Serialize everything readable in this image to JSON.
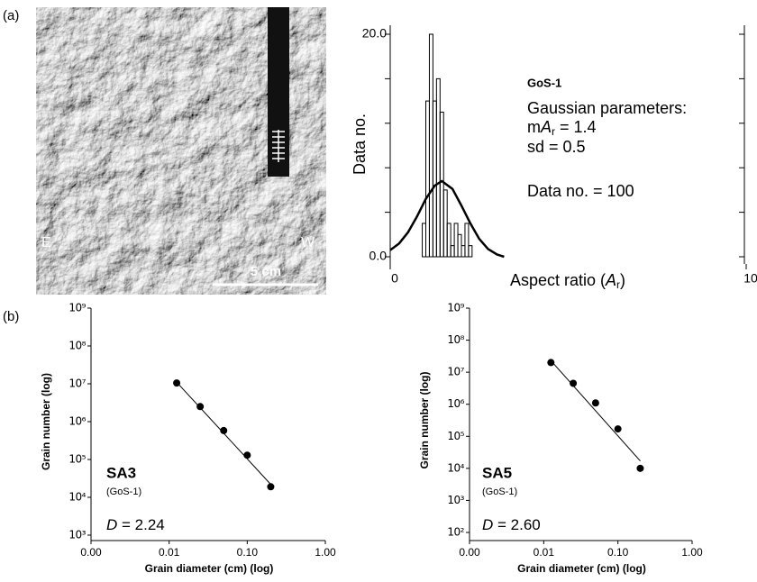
{
  "panel_labels": [
    "(a)",
    "(b)"
  ],
  "photo": {
    "labels": [
      "E",
      "W"
    ],
    "scale_bar": "5 cm"
  },
  "chart_data": [
    {
      "type": "histogram",
      "ylabel": "Data no.",
      "xlabel": {
        "text": "Aspect ratio (",
        "symbol": "A",
        "subscript": "r",
        "close": ")"
      },
      "annotation": {
        "sample": "GoS-1",
        "heading": "Gaussian parameters:",
        "mean": {
          "prefix": "m",
          "symbol": "A",
          "subscript": "r",
          "text": " = 1.4"
        },
        "sd": "sd = 0.5",
        "count": "Data no. = 100"
      },
      "bins": [
        0.9,
        1.0,
        1.1,
        1.2,
        1.3,
        1.4,
        1.5,
        1.6,
        1.7,
        1.8,
        1.9,
        2.0,
        2.1,
        2.2,
        2.3
      ],
      "counts": [
        3,
        14,
        20,
        14,
        16,
        13,
        6,
        3,
        1,
        3,
        2,
        1,
        3,
        1
      ],
      "color": "#000000",
      "curve": {
        "x": [
          0,
          0.25,
          0.5,
          0.75,
          1.0,
          1.25,
          1.45,
          1.75,
          2.0,
          2.25,
          2.5,
          2.75,
          3.0,
          3.2
        ],
        "y": [
          0.6,
          1.2,
          2.2,
          3.6,
          5.2,
          6.4,
          6.8,
          6.1,
          4.6,
          3.0,
          1.6,
          0.7,
          0.2,
          0
        ]
      },
      "xlim": [
        0,
        10
      ],
      "xticks": [
        0,
        10
      ],
      "ylim": [
        0,
        20
      ],
      "yticks": [
        {
          "value": 0,
          "label": "0.0"
        },
        {
          "value": 20,
          "label": "20.0"
        }
      ],
      "yminor_ticks": [
        4,
        8,
        12,
        16
      ],
      "right_axis": true
    },
    {
      "type": "scatter",
      "log_x": true,
      "log_y": true,
      "title": "SA3",
      "subtitle": "(GoS-1)",
      "annotation": {
        "symbol": "D",
        "text": " = 2.24"
      },
      "xlabel": "Grain diameter (cm) (log)",
      "ylabel": "Grain number (log)",
      "x": [
        0.0125,
        0.025,
        0.05,
        0.1,
        0.2
      ],
      "y": [
        10500000,
        2500000,
        580000,
        130000,
        19000
      ],
      "fit": {
        "x": [
          0.0125,
          0.2
        ],
        "y": [
          11000000,
          22000
        ]
      },
      "color": "#000000",
      "xlim": [
        0.001,
        1
      ],
      "xticks": [
        {
          "value": 0.001,
          "label": "0.00"
        },
        {
          "value": 0.01,
          "label": "0.01"
        },
        {
          "value": 0.1,
          "label": "0.10"
        },
        {
          "value": 1,
          "label": "1.00"
        }
      ],
      "ylim": [
        1000,
        1000000000
      ],
      "yticks": [
        {
          "value": 1000,
          "label": "10³"
        },
        {
          "value": 10000,
          "label": "10⁴"
        },
        {
          "value": 100000,
          "label": "10⁵"
        },
        {
          "value": 1000000,
          "label": "10⁶"
        },
        {
          "value": 10000000,
          "label": "10⁷"
        },
        {
          "value": 100000000,
          "label": "10⁸"
        },
        {
          "value": 1000000000,
          "label": "10⁹"
        }
      ]
    },
    {
      "type": "scatter",
      "log_x": true,
      "log_y": true,
      "title": "SA5",
      "subtitle": "(GoS-1)",
      "annotation": {
        "symbol": "D",
        "text": " = 2.60"
      },
      "xlabel": "Grain diameter (cm) (log)",
      "ylabel": "Grain number (log)",
      "x": [
        0.0125,
        0.025,
        0.05,
        0.1,
        0.2
      ],
      "y": [
        20000000,
        4500000,
        1100000,
        170000,
        10000
      ],
      "fit": {
        "x": [
          0.0125,
          0.2
        ],
        "y": [
          23000000,
          17000
        ]
      },
      "color": "#000000",
      "xlim": [
        0.001,
        1
      ],
      "xticks": [
        {
          "value": 0.001,
          "label": "0.00"
        },
        {
          "value": 0.01,
          "label": "0.01"
        },
        {
          "value": 0.1,
          "label": "0.10"
        },
        {
          "value": 1,
          "label": "1.00"
        }
      ],
      "ylim": [
        100,
        1000000000
      ],
      "yticks": [
        {
          "value": 100,
          "label": "10²"
        },
        {
          "value": 1000,
          "label": "10³"
        },
        {
          "value": 10000,
          "label": "10⁴"
        },
        {
          "value": 100000,
          "label": "10⁵"
        },
        {
          "value": 1000000,
          "label": "10⁶"
        },
        {
          "value": 10000000,
          "label": "10⁷"
        },
        {
          "value": 100000000,
          "label": "10⁸"
        },
        {
          "value": 1000000000,
          "label": "10⁹"
        }
      ]
    }
  ]
}
